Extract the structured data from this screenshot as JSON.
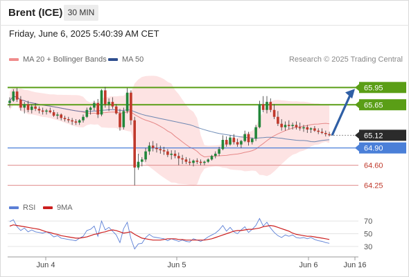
{
  "header": {
    "title": "Brent (ICE)",
    "timeframe": "30 MIN",
    "datetime": "Friday, June 6, 2025 5:40:39 AM CET"
  },
  "legend": {
    "ma20_label": "MA 20 + Bollinger Bands",
    "ma50_label": "MA 50",
    "credit": "Research © 2025 Trading Central"
  },
  "rsi_legend": {
    "rsi_label": "RSI",
    "ma9_label": "9MA"
  },
  "colors": {
    "up": "#22863a",
    "down": "#c0392b",
    "resistance": "#5a9e16",
    "support": "#4a7fd8",
    "target": "#e08a8a",
    "band_fill": "#fde0e0",
    "ma20": "#e07070",
    "ma50": "#4a6fa5",
    "arrow": "#2f5fa5",
    "rsi": "#5b7fd6",
    "rsi_ma": "#cc1f1f",
    "current_price_box": "#2b2b2b"
  },
  "chart_data": [
    {
      "type": "candlestick",
      "title": "Brent (ICE)",
      "timeframe": "30 MIN",
      "x_ticks": [
        "Jun 4",
        "Jun 5",
        "Jun 6",
        "Jun 16"
      ],
      "ylim": [
        64.15,
        66.05
      ],
      "current_price": 65.12,
      "levels": [
        {
          "value": 65.95,
          "label": "65.95",
          "kind": "resistance"
        },
        {
          "value": 65.65,
          "label": "65.65",
          "kind": "resistance"
        },
        {
          "value": 64.9,
          "label": "64.90",
          "kind": "support"
        },
        {
          "value": 64.6,
          "label": "64.60",
          "kind": "target"
        },
        {
          "value": 64.25,
          "label": "64.25",
          "kind": "target"
        }
      ],
      "candles": [
        [
          65.68,
          65.78,
          65.6,
          65.72
        ],
        [
          65.72,
          65.92,
          65.7,
          65.88
        ],
        [
          65.88,
          65.94,
          65.7,
          65.74
        ],
        [
          65.74,
          65.8,
          65.55,
          65.6
        ],
        [
          65.6,
          65.7,
          65.5,
          65.66
        ],
        [
          65.66,
          65.72,
          65.52,
          65.56
        ],
        [
          65.56,
          65.66,
          65.5,
          65.62
        ],
        [
          65.62,
          65.68,
          65.54,
          65.58
        ],
        [
          65.58,
          65.62,
          65.5,
          65.55
        ],
        [
          65.55,
          65.6,
          65.48,
          65.53
        ],
        [
          65.53,
          65.58,
          65.48,
          65.55
        ],
        [
          65.55,
          65.6,
          65.5,
          65.52
        ],
        [
          65.52,
          65.56,
          65.44,
          65.46
        ],
        [
          65.46,
          65.52,
          65.4,
          65.48
        ],
        [
          65.48,
          65.5,
          65.38,
          65.42
        ],
        [
          65.42,
          65.46,
          65.36,
          65.4
        ],
        [
          65.4,
          65.44,
          65.34,
          65.38
        ],
        [
          65.38,
          65.42,
          65.3,
          65.36
        ],
        [
          65.36,
          65.4,
          65.3,
          65.34
        ],
        [
          65.34,
          65.4,
          65.3,
          65.38
        ],
        [
          65.38,
          65.48,
          65.34,
          65.44
        ],
        [
          65.44,
          65.6,
          65.42,
          65.56
        ],
        [
          65.56,
          65.62,
          65.48,
          65.6
        ],
        [
          65.6,
          65.72,
          65.55,
          65.68
        ],
        [
          65.68,
          65.75,
          65.42,
          65.48
        ],
        [
          65.48,
          65.92,
          65.45,
          65.9
        ],
        [
          65.9,
          65.96,
          65.6,
          65.66
        ],
        [
          65.66,
          65.76,
          65.54,
          65.7
        ],
        [
          65.7,
          65.78,
          65.58,
          65.62
        ],
        [
          65.62,
          65.66,
          65.48,
          65.5
        ],
        [
          65.5,
          65.58,
          65.2,
          65.26
        ],
        [
          65.26,
          65.6,
          65.22,
          65.54
        ],
        [
          65.54,
          65.94,
          65.5,
          65.86
        ],
        [
          65.86,
          65.9,
          65.3,
          65.38
        ],
        [
          65.38,
          65.44,
          64.25,
          64.56
        ],
        [
          64.56,
          64.8,
          64.52,
          64.66
        ],
        [
          64.66,
          64.74,
          64.58,
          64.7
        ],
        [
          64.7,
          64.9,
          64.66,
          64.84
        ],
        [
          64.84,
          65.0,
          64.78,
          64.94
        ],
        [
          64.94,
          65.02,
          64.84,
          64.9
        ],
        [
          64.9,
          64.98,
          64.82,
          64.88
        ],
        [
          64.88,
          64.94,
          64.8,
          64.86
        ],
        [
          64.86,
          64.92,
          64.78,
          64.84
        ],
        [
          64.84,
          64.88,
          64.74,
          64.78
        ],
        [
          64.78,
          64.86,
          64.7,
          64.8
        ],
        [
          64.8,
          64.86,
          64.72,
          64.76
        ],
        [
          64.76,
          64.82,
          64.6,
          64.72
        ],
        [
          64.72,
          64.78,
          64.62,
          64.7
        ],
        [
          64.7,
          64.74,
          64.62,
          64.66
        ],
        [
          64.66,
          64.72,
          64.6,
          64.64
        ],
        [
          64.64,
          64.7,
          64.58,
          64.68
        ],
        [
          64.68,
          64.72,
          64.62,
          64.66
        ],
        [
          64.66,
          64.7,
          64.6,
          64.64
        ],
        [
          64.64,
          64.68,
          64.6,
          64.66
        ],
        [
          64.66,
          64.72,
          64.64,
          64.7
        ],
        [
          64.7,
          64.78,
          64.68,
          64.76
        ],
        [
          64.76,
          64.84,
          64.72,
          64.8
        ],
        [
          64.8,
          64.92,
          64.76,
          64.88
        ],
        [
          64.88,
          65.12,
          64.86,
          65.04
        ],
        [
          65.04,
          65.1,
          64.92,
          64.96
        ],
        [
          64.96,
          65.12,
          64.94,
          65.08
        ],
        [
          65.08,
          65.14,
          64.96,
          65.0
        ],
        [
          65.0,
          65.06,
          64.92,
          64.96
        ],
        [
          64.96,
          65.04,
          64.9,
          65.02
        ],
        [
          65.02,
          65.2,
          65.0,
          65.14
        ],
        [
          65.14,
          65.18,
          64.94,
          65.0
        ],
        [
          65.0,
          65.08,
          64.96,
          65.06
        ],
        [
          65.06,
          65.3,
          65.02,
          65.26
        ],
        [
          65.26,
          65.72,
          65.24,
          65.66
        ],
        [
          65.66,
          65.8,
          65.52,
          65.56
        ],
        [
          65.56,
          65.8,
          65.5,
          65.7
        ],
        [
          65.7,
          65.76,
          65.52,
          65.56
        ],
        [
          65.56,
          65.66,
          65.4,
          65.44
        ],
        [
          65.44,
          65.54,
          65.28,
          65.32
        ],
        [
          65.32,
          65.4,
          65.2,
          65.26
        ],
        [
          65.26,
          65.36,
          65.2,
          65.3
        ],
        [
          65.3,
          65.38,
          65.22,
          65.28
        ],
        [
          65.28,
          65.34,
          65.22,
          65.3
        ],
        [
          65.3,
          65.36,
          65.22,
          65.26
        ],
        [
          65.26,
          65.34,
          65.2,
          65.24
        ],
        [
          65.24,
          65.3,
          65.18,
          65.26
        ],
        [
          65.26,
          65.3,
          65.16,
          65.22
        ],
        [
          65.22,
          65.26,
          65.16,
          65.24
        ],
        [
          65.24,
          65.28,
          65.18,
          65.2
        ],
        [
          65.2,
          65.24,
          65.14,
          65.18
        ],
        [
          65.18,
          65.24,
          65.14,
          65.16
        ],
        [
          65.16,
          65.2,
          65.1,
          65.14
        ],
        [
          65.14,
          65.18,
          65.1,
          65.12
        ]
      ],
      "indicators": [
        "MA 20 + Bollinger Bands",
        "MA 50"
      ],
      "forecast_arrow": {
        "from": 65.12,
        "to": 65.95
      }
    },
    {
      "type": "line",
      "yticks": [
        70,
        50,
        30
      ],
      "ylim": [
        20,
        80
      ],
      "series": [
        {
          "name": "RSI",
          "values": [
            69,
            72,
            61,
            55,
            59,
            53,
            56,
            53,
            52,
            51,
            53,
            50,
            45,
            47,
            43,
            42,
            41,
            40,
            39,
            43,
            46,
            55,
            57,
            62,
            46,
            70,
            56,
            60,
            54,
            48,
            36,
            58,
            68,
            42,
            26,
            34,
            35,
            44,
            49,
            45,
            44,
            43,
            42,
            39,
            42,
            40,
            38,
            40,
            38,
            37,
            42,
            40,
            38,
            41,
            45,
            48,
            51,
            56,
            63,
            54,
            60,
            53,
            50,
            56,
            61,
            52,
            57,
            63,
            74,
            62,
            68,
            59,
            52,
            47,
            44,
            48,
            46,
            48,
            44,
            43,
            44,
            42,
            44,
            41,
            39,
            38,
            36,
            35
          ]
        },
        {
          "name": "9MA",
          "values": [
            62,
            64,
            63,
            62,
            61,
            60,
            59,
            58,
            57,
            55,
            53,
            52,
            50,
            49,
            47,
            46,
            45,
            44,
            43,
            43,
            44,
            45,
            47,
            49,
            50,
            52,
            53,
            55,
            56,
            55,
            53,
            51,
            52,
            53,
            49,
            46,
            43,
            42,
            41,
            40,
            40,
            40,
            41,
            42,
            42,
            42,
            41,
            41,
            40,
            40,
            40,
            40,
            40,
            40,
            41,
            42,
            44,
            46,
            48,
            50,
            52,
            54,
            55,
            55,
            56,
            57,
            57,
            58,
            59,
            61,
            62,
            63,
            62,
            60,
            58,
            56,
            54,
            51,
            49,
            48,
            47,
            46,
            46,
            45,
            44,
            43,
            42,
            41
          ]
        }
      ]
    }
  ]
}
